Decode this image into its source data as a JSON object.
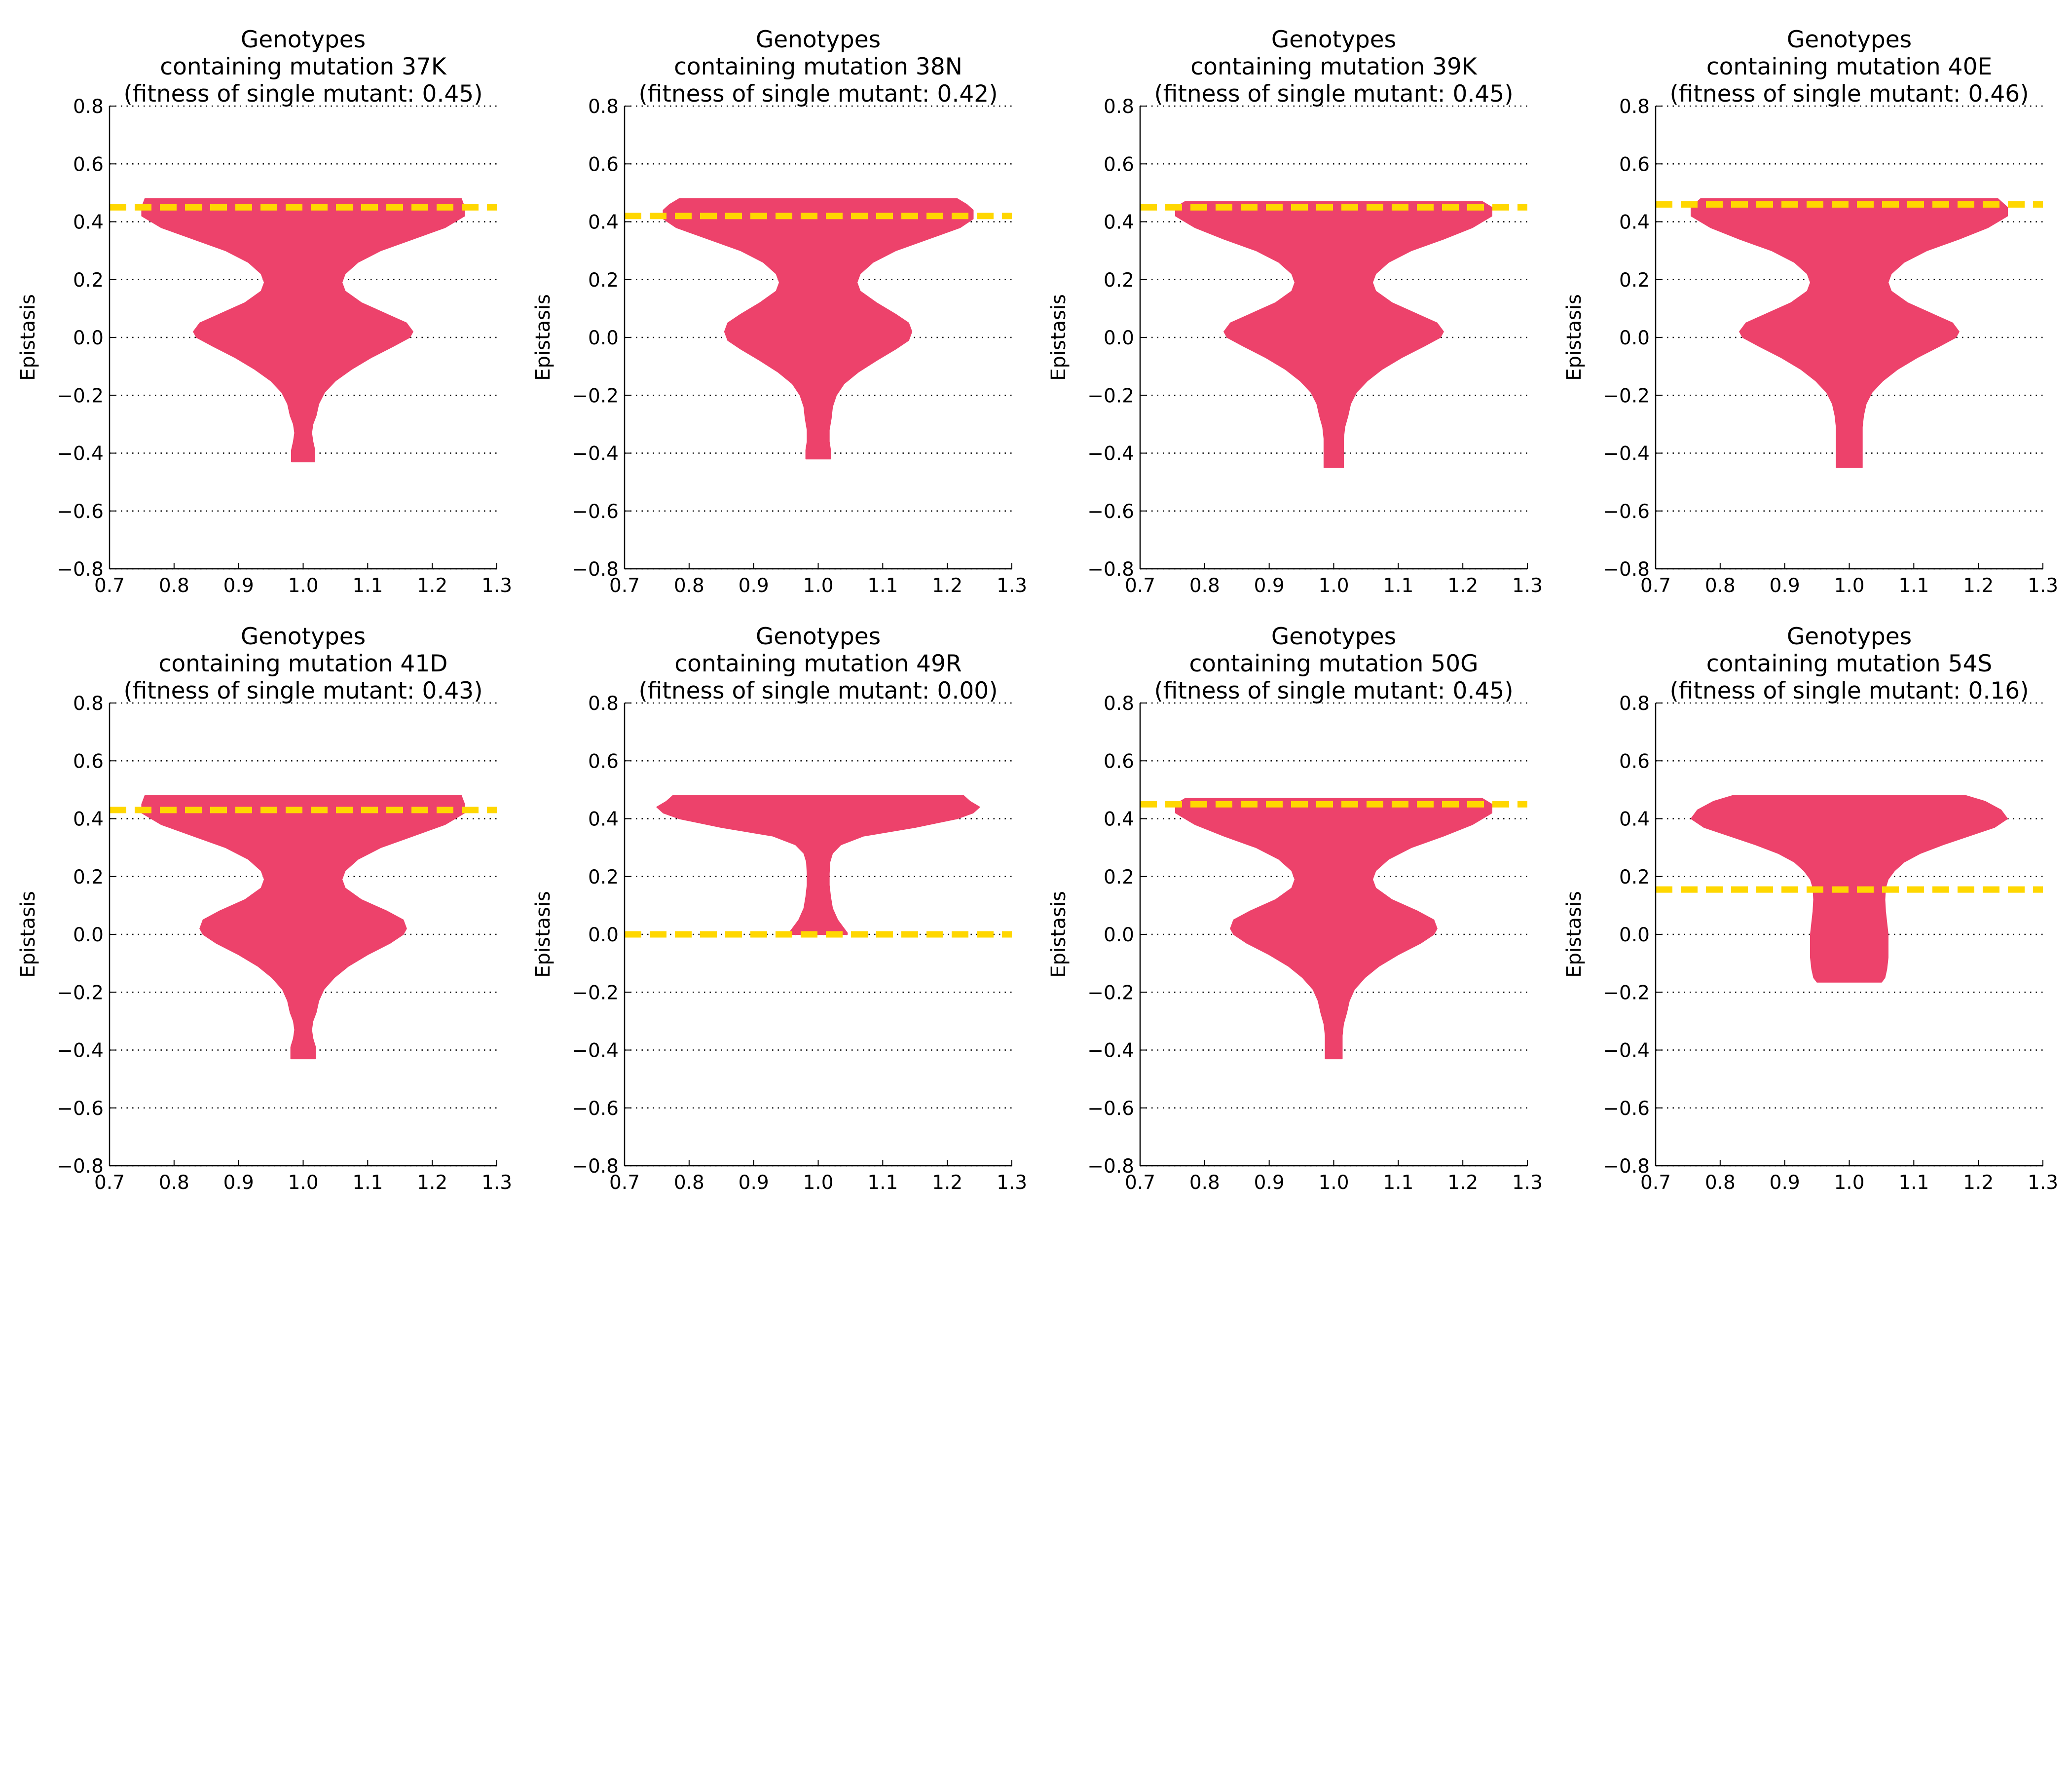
{
  "figure": {
    "ylabel": "Epistasis",
    "xlim": [
      0.7,
      1.3
    ],
    "ylim": [
      -0.8,
      0.8
    ],
    "xticks": [
      "0.7",
      "0.8",
      "0.9",
      "1.0",
      "1.1",
      "1.2",
      "1.3"
    ],
    "yticks": [
      "0.8",
      "0.6",
      "0.4",
      "0.2",
      "0.0",
      "−0.2",
      "−0.4",
      "−0.6",
      "−0.8"
    ],
    "violin_color": "#ED426B",
    "reference_line_color": "#FFD700",
    "grid_color": "#000000"
  },
  "chart_data": [
    {
      "type": "violin",
      "title": [
        "Genotypes",
        "containing mutation 37K",
        "(fitness of single mutant: 0.45)"
      ],
      "ylabel": "Epistasis",
      "xlim": [
        0.7,
        1.3
      ],
      "ylim": [
        -0.8,
        0.8
      ],
      "grid": "y dotted",
      "reference_line": 0.45,
      "violin": {
        "center": 1.0,
        "max": 0.48,
        "min": -0.43,
        "profile": [
          [
            0.48,
            0.245
          ],
          [
            0.45,
            0.25
          ],
          [
            0.42,
            0.25
          ],
          [
            0.38,
            0.22
          ],
          [
            0.34,
            0.17
          ],
          [
            0.3,
            0.12
          ],
          [
            0.26,
            0.085
          ],
          [
            0.22,
            0.065
          ],
          [
            0.19,
            0.06
          ],
          [
            0.16,
            0.065
          ],
          [
            0.12,
            0.09
          ],
          [
            0.08,
            0.13
          ],
          [
            0.05,
            0.16
          ],
          [
            0.02,
            0.17
          ],
          [
            0.0,
            0.165
          ],
          [
            -0.03,
            0.14
          ],
          [
            -0.07,
            0.105
          ],
          [
            -0.11,
            0.075
          ],
          [
            -0.15,
            0.05
          ],
          [
            -0.19,
            0.033
          ],
          [
            -0.23,
            0.024
          ],
          [
            -0.27,
            0.02
          ],
          [
            -0.3,
            0.015
          ],
          [
            -0.33,
            0.013
          ],
          [
            -0.36,
            0.015
          ],
          [
            -0.39,
            0.018
          ],
          [
            -0.43,
            0.018
          ]
        ]
      }
    },
    {
      "type": "violin",
      "title": [
        "Genotypes",
        "containing mutation 38N",
        "(fitness of single mutant: 0.42)"
      ],
      "ylabel": "Epistasis",
      "xlim": [
        0.7,
        1.3
      ],
      "ylim": [
        -0.8,
        0.8
      ],
      "grid": "y dotted",
      "reference_line": 0.42,
      "violin": {
        "center": 1.0,
        "max": 0.48,
        "min": -0.42,
        "profile": [
          [
            0.48,
            0.215
          ],
          [
            0.46,
            0.23
          ],
          [
            0.44,
            0.24
          ],
          [
            0.41,
            0.24
          ],
          [
            0.38,
            0.22
          ],
          [
            0.34,
            0.17
          ],
          [
            0.3,
            0.12
          ],
          [
            0.26,
            0.085
          ],
          [
            0.22,
            0.065
          ],
          [
            0.19,
            0.06
          ],
          [
            0.16,
            0.065
          ],
          [
            0.12,
            0.09
          ],
          [
            0.08,
            0.12
          ],
          [
            0.05,
            0.14
          ],
          [
            0.02,
            0.145
          ],
          [
            -0.01,
            0.14
          ],
          [
            -0.04,
            0.12
          ],
          [
            -0.08,
            0.09
          ],
          [
            -0.12,
            0.062
          ],
          [
            -0.16,
            0.04
          ],
          [
            -0.2,
            0.028
          ],
          [
            -0.24,
            0.022
          ],
          [
            -0.28,
            0.02
          ],
          [
            -0.32,
            0.017
          ],
          [
            -0.36,
            0.017
          ],
          [
            -0.39,
            0.019
          ],
          [
            -0.42,
            0.019
          ]
        ]
      }
    },
    {
      "type": "violin",
      "title": [
        "Genotypes",
        "containing mutation 39K",
        "(fitness of single mutant: 0.45)"
      ],
      "ylabel": "Epistasis",
      "xlim": [
        0.7,
        1.3
      ],
      "ylim": [
        -0.8,
        0.8
      ],
      "grid": "y dotted",
      "reference_line": 0.45,
      "violin": {
        "center": 1.0,
        "max": 0.47,
        "min": -0.45,
        "profile": [
          [
            0.47,
            0.23
          ],
          [
            0.45,
            0.245
          ],
          [
            0.42,
            0.245
          ],
          [
            0.38,
            0.215
          ],
          [
            0.34,
            0.17
          ],
          [
            0.3,
            0.12
          ],
          [
            0.26,
            0.085
          ],
          [
            0.22,
            0.065
          ],
          [
            0.19,
            0.06
          ],
          [
            0.16,
            0.065
          ],
          [
            0.12,
            0.09
          ],
          [
            0.08,
            0.13
          ],
          [
            0.05,
            0.16
          ],
          [
            0.02,
            0.17
          ],
          [
            0.0,
            0.165
          ],
          [
            -0.03,
            0.14
          ],
          [
            -0.07,
            0.105
          ],
          [
            -0.11,
            0.075
          ],
          [
            -0.15,
            0.052
          ],
          [
            -0.19,
            0.035
          ],
          [
            -0.23,
            0.026
          ],
          [
            -0.27,
            0.022
          ],
          [
            -0.31,
            0.017
          ],
          [
            -0.35,
            0.015
          ],
          [
            -0.4,
            0.015
          ],
          [
            -0.45,
            0.015
          ]
        ]
      }
    },
    {
      "type": "violin",
      "title": [
        "Genotypes",
        "containing mutation 40E",
        "(fitness of single mutant: 0.46)"
      ],
      "ylabel": "Epistasis",
      "xlim": [
        0.7,
        1.3
      ],
      "ylim": [
        -0.8,
        0.8
      ],
      "grid": "y dotted",
      "reference_line": 0.46,
      "violin": {
        "center": 1.0,
        "max": 0.48,
        "min": -0.45,
        "profile": [
          [
            0.48,
            0.23
          ],
          [
            0.45,
            0.245
          ],
          [
            0.42,
            0.245
          ],
          [
            0.38,
            0.215
          ],
          [
            0.34,
            0.17
          ],
          [
            0.3,
            0.12
          ],
          [
            0.26,
            0.085
          ],
          [
            0.22,
            0.065
          ],
          [
            0.19,
            0.06
          ],
          [
            0.16,
            0.065
          ],
          [
            0.12,
            0.09
          ],
          [
            0.08,
            0.13
          ],
          [
            0.05,
            0.16
          ],
          [
            0.02,
            0.17
          ],
          [
            0.0,
            0.165
          ],
          [
            -0.03,
            0.14
          ],
          [
            -0.07,
            0.105
          ],
          [
            -0.11,
            0.075
          ],
          [
            -0.15,
            0.052
          ],
          [
            -0.19,
            0.035
          ],
          [
            -0.23,
            0.026
          ],
          [
            -0.27,
            0.022
          ],
          [
            -0.31,
            0.02
          ],
          [
            -0.35,
            0.02
          ],
          [
            -0.4,
            0.02
          ],
          [
            -0.45,
            0.02
          ]
        ]
      }
    },
    {
      "type": "violin",
      "title": [
        "Genotypes",
        "containing mutation 41D",
        "(fitness of single mutant: 0.43)"
      ],
      "ylabel": "Epistasis",
      "xlim": [
        0.7,
        1.3
      ],
      "ylim": [
        -0.8,
        0.8
      ],
      "grid": "y dotted",
      "reference_line": 0.43,
      "violin": {
        "center": 1.0,
        "max": 0.48,
        "min": -0.43,
        "profile": [
          [
            0.48,
            0.245
          ],
          [
            0.45,
            0.25
          ],
          [
            0.42,
            0.25
          ],
          [
            0.38,
            0.22
          ],
          [
            0.34,
            0.17
          ],
          [
            0.3,
            0.12
          ],
          [
            0.26,
            0.085
          ],
          [
            0.22,
            0.065
          ],
          [
            0.19,
            0.06
          ],
          [
            0.16,
            0.065
          ],
          [
            0.12,
            0.09
          ],
          [
            0.08,
            0.13
          ],
          [
            0.05,
            0.155
          ],
          [
            0.02,
            0.16
          ],
          [
            0.0,
            0.155
          ],
          [
            -0.03,
            0.135
          ],
          [
            -0.07,
            0.1
          ],
          [
            -0.11,
            0.07
          ],
          [
            -0.15,
            0.048
          ],
          [
            -0.19,
            0.032
          ],
          [
            -0.23,
            0.024
          ],
          [
            -0.27,
            0.02
          ],
          [
            -0.3,
            0.015
          ],
          [
            -0.33,
            0.013
          ],
          [
            -0.36,
            0.015
          ],
          [
            -0.39,
            0.019
          ],
          [
            -0.43,
            0.019
          ]
        ]
      }
    },
    {
      "type": "violin",
      "title": [
        "Genotypes",
        "containing mutation 49R",
        "(fitness of single mutant: 0.00)"
      ],
      "ylabel": "Epistasis",
      "xlim": [
        0.7,
        1.3
      ],
      "ylim": [
        -0.8,
        0.8
      ],
      "grid": "y dotted",
      "reference_line": 0.0,
      "violin": {
        "center": 1.0,
        "max": 0.48,
        "min": 0.0,
        "profile": [
          [
            0.48,
            0.225
          ],
          [
            0.46,
            0.235
          ],
          [
            0.44,
            0.25
          ],
          [
            0.42,
            0.24
          ],
          [
            0.4,
            0.215
          ],
          [
            0.37,
            0.15
          ],
          [
            0.34,
            0.07
          ],
          [
            0.31,
            0.035
          ],
          [
            0.28,
            0.022
          ],
          [
            0.25,
            0.018
          ],
          [
            0.21,
            0.017
          ],
          [
            0.17,
            0.017
          ],
          [
            0.13,
            0.019
          ],
          [
            0.09,
            0.022
          ],
          [
            0.05,
            0.03
          ],
          [
            0.02,
            0.04
          ],
          [
            0.005,
            0.045
          ],
          [
            0.0,
            0.045
          ]
        ]
      }
    },
    {
      "type": "violin",
      "title": [
        "Genotypes",
        "containing mutation 50G",
        "(fitness of single mutant: 0.45)"
      ],
      "ylabel": "Epistasis",
      "xlim": [
        0.7,
        1.3
      ],
      "ylim": [
        -0.8,
        0.8
      ],
      "grid": "y dotted",
      "reference_line": 0.45,
      "violin": {
        "center": 1.0,
        "max": 0.47,
        "min": -0.43,
        "profile": [
          [
            0.47,
            0.23
          ],
          [
            0.45,
            0.245
          ],
          [
            0.42,
            0.245
          ],
          [
            0.38,
            0.215
          ],
          [
            0.34,
            0.17
          ],
          [
            0.3,
            0.12
          ],
          [
            0.26,
            0.085
          ],
          [
            0.22,
            0.065
          ],
          [
            0.19,
            0.06
          ],
          [
            0.16,
            0.065
          ],
          [
            0.12,
            0.09
          ],
          [
            0.08,
            0.13
          ],
          [
            0.05,
            0.155
          ],
          [
            0.02,
            0.16
          ],
          [
            0.0,
            0.155
          ],
          [
            -0.03,
            0.135
          ],
          [
            -0.07,
            0.1
          ],
          [
            -0.11,
            0.07
          ],
          [
            -0.15,
            0.048
          ],
          [
            -0.19,
            0.032
          ],
          [
            -0.23,
            0.024
          ],
          [
            -0.27,
            0.02
          ],
          [
            -0.31,
            0.015
          ],
          [
            -0.35,
            0.013
          ],
          [
            -0.39,
            0.013
          ],
          [
            -0.43,
            0.013
          ]
        ]
      }
    },
    {
      "type": "violin",
      "title": [
        "Genotypes",
        "containing mutation 54S",
        "(fitness of single mutant: 0.16)"
      ],
      "ylabel": "Epistasis",
      "xlim": [
        0.7,
        1.3
      ],
      "ylim": [
        -0.8,
        0.8
      ],
      "grid": "y dotted",
      "reference_line": 0.155,
      "violin": {
        "center": 1.0,
        "max": 0.48,
        "min": -0.165,
        "profile": [
          [
            0.48,
            0.18
          ],
          [
            0.46,
            0.21
          ],
          [
            0.43,
            0.235
          ],
          [
            0.4,
            0.245
          ],
          [
            0.37,
            0.225
          ],
          [
            0.34,
            0.185
          ],
          [
            0.31,
            0.145
          ],
          [
            0.28,
            0.11
          ],
          [
            0.25,
            0.085
          ],
          [
            0.22,
            0.07
          ],
          [
            0.19,
            0.06
          ],
          [
            0.16,
            0.056
          ],
          [
            0.12,
            0.055
          ],
          [
            0.08,
            0.056
          ],
          [
            0.04,
            0.058
          ],
          [
            0.0,
            0.06
          ],
          [
            -0.04,
            0.06
          ],
          [
            -0.08,
            0.06
          ],
          [
            -0.12,
            0.058
          ],
          [
            -0.15,
            0.055
          ],
          [
            -0.165,
            0.05
          ]
        ]
      }
    }
  ]
}
